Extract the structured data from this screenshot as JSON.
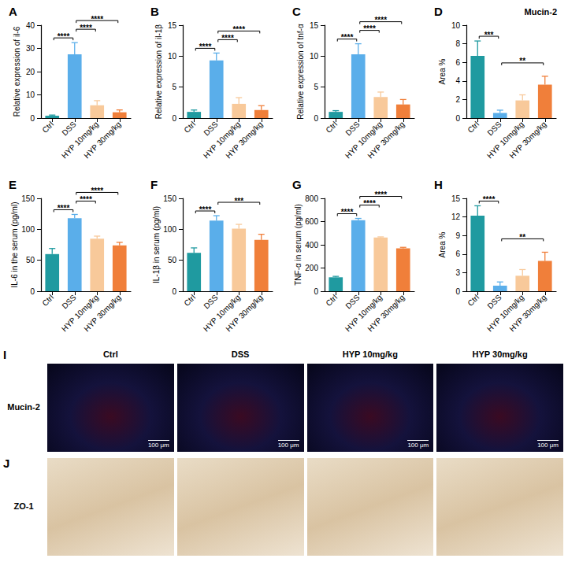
{
  "chart_data": [
    {
      "panel": "A",
      "type": "bar",
      "y_label": "Relative expression of il-6",
      "categories": [
        "Ctrl",
        "DSS",
        "HYP 10mg/kg",
        "HYP 30mg/kg"
      ],
      "values": [
        1,
        27.5,
        5.5,
        2.5
      ],
      "errors": [
        0.3,
        5,
        2,
        1
      ],
      "colors": [
        "#1f9aa0",
        "#5aaeea",
        "#f8c99a",
        "#f07f3a"
      ],
      "ylim": [
        0,
        40
      ],
      "yticks": [
        0,
        10,
        20,
        30,
        40
      ],
      "grid": false,
      "annotations": [
        {
          "from": 0,
          "to": 1,
          "label": "****"
        },
        {
          "from": 1,
          "to": 2,
          "label": "****"
        },
        {
          "from": 1,
          "to": 3,
          "label": "****"
        }
      ]
    },
    {
      "panel": "B",
      "type": "bar",
      "y_label": "Relative expression of il-1β",
      "categories": [
        "Ctrl",
        "DSS",
        "HYP 10mg/kg",
        "HYP 30mg/kg"
      ],
      "values": [
        1,
        9.3,
        2.3,
        1.3
      ],
      "errors": [
        0.3,
        1.2,
        1,
        0.7
      ],
      "colors": [
        "#1f9aa0",
        "#5aaeea",
        "#f8c99a",
        "#f07f3a"
      ],
      "ylim": [
        0,
        15
      ],
      "yticks": [
        0,
        5,
        10,
        15
      ],
      "grid": false,
      "annotations": [
        {
          "from": 0,
          "to": 1,
          "label": "****"
        },
        {
          "from": 1,
          "to": 2,
          "label": "****"
        },
        {
          "from": 1,
          "to": 3,
          "label": "****"
        }
      ]
    },
    {
      "panel": "C",
      "type": "bar",
      "y_label": "Relative expression of tnf-α",
      "categories": [
        "Ctrl",
        "DSS",
        "HYP 10mg/kg",
        "HYP 30mg/kg"
      ],
      "values": [
        1,
        10.3,
        3.4,
        2.2
      ],
      "errors": [
        0.2,
        1.7,
        0.8,
        0.8
      ],
      "colors": [
        "#1f9aa0",
        "#5aaeea",
        "#f8c99a",
        "#f07f3a"
      ],
      "ylim": [
        0,
        15
      ],
      "yticks": [
        0,
        5,
        10,
        15
      ],
      "grid": false,
      "annotations": [
        {
          "from": 0,
          "to": 1,
          "label": "****"
        },
        {
          "from": 1,
          "to": 2,
          "label": "****"
        },
        {
          "from": 1,
          "to": 3,
          "label": "****"
        }
      ]
    },
    {
      "panel": "D",
      "type": "bar",
      "title": "Mucin-2",
      "y_label": "Area %",
      "categories": [
        "Ctrl",
        "DSS",
        "HYP 10mg/kg",
        "HYP 30mg/kg"
      ],
      "values": [
        6.7,
        0.55,
        1.9,
        3.6
      ],
      "errors": [
        1.6,
        0.3,
        0.6,
        0.9
      ],
      "colors": [
        "#1f9aa0",
        "#5aaeea",
        "#f8c99a",
        "#f07f3a"
      ],
      "ylim": [
        0,
        10
      ],
      "yticks": [
        0,
        2,
        4,
        6,
        8,
        10
      ],
      "grid": false,
      "annotations": [
        {
          "from": 0,
          "to": 1,
          "label": "***"
        },
        {
          "from": 1,
          "to": 3,
          "label": "**"
        }
      ]
    },
    {
      "panel": "E",
      "type": "bar",
      "y_label": "IL-6 in the serum (pg/ml)",
      "categories": [
        "Ctrl",
        "DSS",
        "HYP 10mg/kg",
        "HYP 30mg/kg"
      ],
      "values": [
        60,
        118,
        85,
        74
      ],
      "errors": [
        9,
        6,
        4,
        5
      ],
      "colors": [
        "#1f9aa0",
        "#5aaeea",
        "#f8c99a",
        "#f07f3a"
      ],
      "ylim": [
        0,
        150
      ],
      "yticks": [
        0,
        50,
        100,
        150
      ],
      "grid": false,
      "annotations": [
        {
          "from": 0,
          "to": 1,
          "label": "****"
        },
        {
          "from": 1,
          "to": 2,
          "label": "****"
        },
        {
          "from": 1,
          "to": 3,
          "label": "****"
        }
      ]
    },
    {
      "panel": "F",
      "type": "bar",
      "y_label": "IL-1β in serum (pg/ml)",
      "categories": [
        "Ctrl",
        "DSS",
        "HYP 10mg/kg",
        "HYP 30mg/kg"
      ],
      "values": [
        62,
        114,
        101,
        83
      ],
      "errors": [
        8,
        8,
        7,
        9
      ],
      "colors": [
        "#1f9aa0",
        "#5aaeea",
        "#f8c99a",
        "#f07f3a"
      ],
      "ylim": [
        0,
        150
      ],
      "yticks": [
        0,
        50,
        100,
        150
      ],
      "grid": false,
      "annotations": [
        {
          "from": 0,
          "to": 1,
          "label": "****"
        },
        {
          "from": 1,
          "to": 3,
          "label": "***"
        }
      ]
    },
    {
      "panel": "G",
      "type": "bar",
      "y_label": "TNF-α in serum (pg/ml)",
      "categories": [
        "Ctrl",
        "DSS",
        "HYP 10mg/kg",
        "HYP 30mg/kg"
      ],
      "values": [
        120,
        612,
        463,
        370
      ],
      "errors": [
        8,
        15,
        5,
        8
      ],
      "colors": [
        "#1f9aa0",
        "#5aaeea",
        "#f8c99a",
        "#f07f3a"
      ],
      "ylim": [
        0,
        800
      ],
      "yticks": [
        0,
        200,
        400,
        600,
        800
      ],
      "grid": false,
      "annotations": [
        {
          "from": 0,
          "to": 1,
          "label": "****"
        },
        {
          "from": 1,
          "to": 2,
          "label": "****"
        },
        {
          "from": 1,
          "to": 3,
          "label": "****"
        }
      ]
    },
    {
      "panel": "H",
      "type": "bar",
      "y_label": "Area %",
      "categories": [
        "Ctrl",
        "DSS",
        "HYP 10mg/kg",
        "HYP 30mg/kg"
      ],
      "values": [
        12.2,
        0.9,
        2.5,
        4.9
      ],
      "errors": [
        1.6,
        0.6,
        1,
        1.4
      ],
      "colors": [
        "#1f9aa0",
        "#5aaeea",
        "#f8c99a",
        "#f07f3a"
      ],
      "ylim": [
        0,
        15
      ],
      "yticks": [
        0,
        3,
        6,
        9,
        12,
        15
      ],
      "grid": false,
      "annotations": [
        {
          "from": 0,
          "to": 1,
          "label": "****"
        },
        {
          "from": 1,
          "to": 3,
          "label": "**"
        }
      ]
    }
  ],
  "image_panels": {
    "columns": [
      "Ctrl",
      "DSS",
      "HYP 10mg/kg",
      "HYP 30mg/kg"
    ],
    "rows": [
      {
        "panel": "I",
        "label": "Mucin-2",
        "scale_bar": "100 μm"
      },
      {
        "panel": "J",
        "label": "ZO-1"
      }
    ]
  }
}
